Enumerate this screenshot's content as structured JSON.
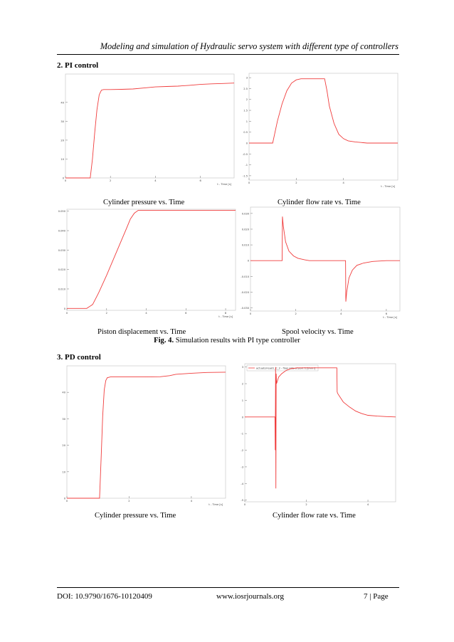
{
  "header": {
    "running_title": "Modeling and simulation of Hydraulic servo system with different type of controllers"
  },
  "sections": {
    "pi": "2. PI control",
    "pd": "3. PD control"
  },
  "captions": {
    "pi_pressure": "Cylinder pressure vs. Time",
    "pi_flow": "Cylinder flow rate vs. Time",
    "pi_piston": "Piston displacement vs. Time",
    "pi_spool": "Spool velocity vs. Time",
    "pd_pressure": "Cylinder pressure vs. Time",
    "pd_flow": "Cylinder flow rate vs. Time"
  },
  "figure_caption": {
    "label": "Fig. 4.",
    "text": " Simulation results with PI type controller"
  },
  "footer": {
    "doi": "DOI: 10.9790/1676-10120409",
    "site": "www.iosrjournals.org",
    "page": "7 | Page"
  },
  "chart_data": [
    {
      "type": "line",
      "id": "pi_pressure",
      "xlabel": "t - Time [s]",
      "xlim": [
        0,
        7.5
      ],
      "ylim": [
        0,
        55
      ],
      "xticks": [
        0,
        2,
        4,
        6
      ],
      "yticks": [
        0,
        10,
        20,
        30,
        40
      ],
      "series": [
        {
          "color": "#f03c3c",
          "x": [
            0,
            1,
            1.1,
            1.2,
            1.3,
            1.4,
            1.5,
            1.6,
            1.7,
            1.8,
            2,
            2.5,
            3,
            3.5,
            4,
            4.5,
            5,
            5.5,
            6,
            6.5,
            7,
            7.5
          ],
          "y": [
            0,
            0,
            0,
            10,
            24,
            36,
            44,
            46.5,
            46.8,
            46.8,
            46.8,
            46.9,
            47.1,
            47.6,
            48.2,
            48.4,
            48.6,
            49,
            49.5,
            49.8,
            50,
            50.2
          ]
        }
      ]
    },
    {
      "type": "line",
      "id": "pi_flow",
      "xlabel": "t - Time [s]",
      "xlim": [
        0,
        6.3
      ],
      "ylim": [
        -1.7,
        3.2
      ],
      "xticks": [
        0,
        2,
        4
      ],
      "yticks": [
        -1.5,
        -1.0,
        -0.5,
        0.0,
        0.5,
        1.0,
        1.5,
        2.0,
        2.5,
        3.0
      ],
      "series": [
        {
          "color": "#f03c3c",
          "x": [
            0,
            1,
            1.2,
            1.4,
            1.6,
            1.8,
            2,
            2.2,
            2.4,
            2.6,
            3,
            3.2,
            3.3,
            3.4,
            3.6,
            3.8,
            4,
            4.2,
            4.5,
            5,
            5.5,
            6,
            6.3
          ],
          "y": [
            0,
            0,
            1,
            1.8,
            2.4,
            2.75,
            2.9,
            2.95,
            2.95,
            2.95,
            2.95,
            2.95,
            2.4,
            1.7,
            0.9,
            0.4,
            0.2,
            0.1,
            0.05,
            0,
            0,
            0,
            0
          ]
        }
      ]
    },
    {
      "type": "line",
      "id": "pi_piston",
      "xlabel": "t - Time [s]",
      "xlim": [
        0,
        8.5
      ],
      "ylim": [
        -0.001,
        0.051
      ],
      "xticks": [
        0,
        2,
        4,
        6,
        8
      ],
      "yticks": [
        0,
        0.01,
        0.02,
        0.03,
        0.04,
        0.05
      ],
      "series": [
        {
          "color": "#f03c3c",
          "x": [
            0,
            1,
            1.3,
            1.6,
            2,
            2.5,
            3,
            3.2,
            3.4,
            3.6,
            4,
            5,
            6,
            7,
            8,
            8.5
          ],
          "y": [
            0,
            0,
            0.002,
            0.008,
            0.017,
            0.029,
            0.041,
            0.046,
            0.049,
            0.0505,
            0.0505,
            0.0505,
            0.0505,
            0.0505,
            0.0505,
            0.0505
          ]
        }
      ]
    },
    {
      "type": "line",
      "id": "pi_spool",
      "xlabel": "t - Time [s]",
      "xlim": [
        0,
        6.6
      ],
      "ylim": [
        -0.032,
        0.034
      ],
      "xticks": [
        0,
        2,
        4,
        6
      ],
      "yticks": [
        -0.03,
        -0.02,
        -0.01,
        0,
        0.01,
        0.02,
        0.03
      ],
      "series": [
        {
          "color": "#f03c3c",
          "x": [
            0,
            1.4,
            1.41,
            1.45,
            1.55,
            1.7,
            1.9,
            2.1,
            2.4,
            2.6,
            3,
            4.2,
            4.21,
            4.25,
            4.35,
            4.5,
            4.7,
            5,
            5.4,
            6,
            6.6
          ],
          "y": [
            0,
            0,
            0.028,
            0.022,
            0.012,
            0.006,
            0.003,
            0.0015,
            0.0005,
            0,
            0,
            0,
            -0.026,
            -0.02,
            -0.011,
            -0.006,
            -0.003,
            -0.0015,
            -0.0005,
            0,
            0
          ]
        }
      ]
    },
    {
      "type": "line",
      "id": "pd_pressure",
      "xlabel": "t - Time [s]",
      "xlim": [
        0,
        5.1
      ],
      "ylim": [
        0,
        50
      ],
      "xticks": [
        0,
        2,
        4
      ],
      "yticks": [
        0,
        10,
        20,
        30,
        40
      ],
      "series": [
        {
          "color": "#f03c3c",
          "x": [
            0,
            1,
            1.05,
            1.1,
            1.15,
            1.2,
            1.25,
            1.3,
            1.4,
            1.6,
            2,
            2.5,
            3,
            3.3,
            3.5,
            4,
            4.5,
            5.1
          ],
          "y": [
            0,
            0,
            0,
            15,
            31,
            41,
            44.5,
            45.5,
            45.8,
            45.8,
            45.8,
            45.8,
            45.9,
            46.3,
            46.8,
            47.2,
            47.5,
            47.6
          ]
        }
      ]
    },
    {
      "type": "line",
      "id": "pd_flow",
      "xlabel": "",
      "xlim": [
        0,
        4.9
      ],
      "ylim": [
        -5.1,
        3.2
      ],
      "xticks": [
        0,
        2,
        4
      ],
      "yticks": [
        -5.0,
        -4.0,
        -3.0,
        -2.0,
        -1.0,
        0.0,
        1.0,
        2.0,
        3.0
      ],
      "legend": "actuatorread1_C_2 - flow rate at port 1 [l/min]",
      "series": [
        {
          "color": "#f03c3c",
          "x": [
            0,
            0.98,
            0.99,
            1.0,
            1.01,
            1.02,
            1.03,
            1.1,
            1.2,
            1.35,
            1.5,
            1.7,
            2,
            2.5,
            2.99,
            3.0,
            3.02,
            3.2,
            3.4,
            3.6,
            3.8,
            4,
            4.3,
            4.6,
            4.9
          ],
          "y": [
            0,
            0,
            -2,
            3,
            -4.3,
            2.6,
            2.0,
            2.4,
            2.6,
            2.8,
            2.9,
            2.95,
            2.95,
            2.95,
            2.95,
            1.5,
            1.4,
            0.9,
            0.6,
            0.35,
            0.2,
            0.1,
            0.05,
            0.02,
            0
          ]
        }
      ]
    }
  ]
}
